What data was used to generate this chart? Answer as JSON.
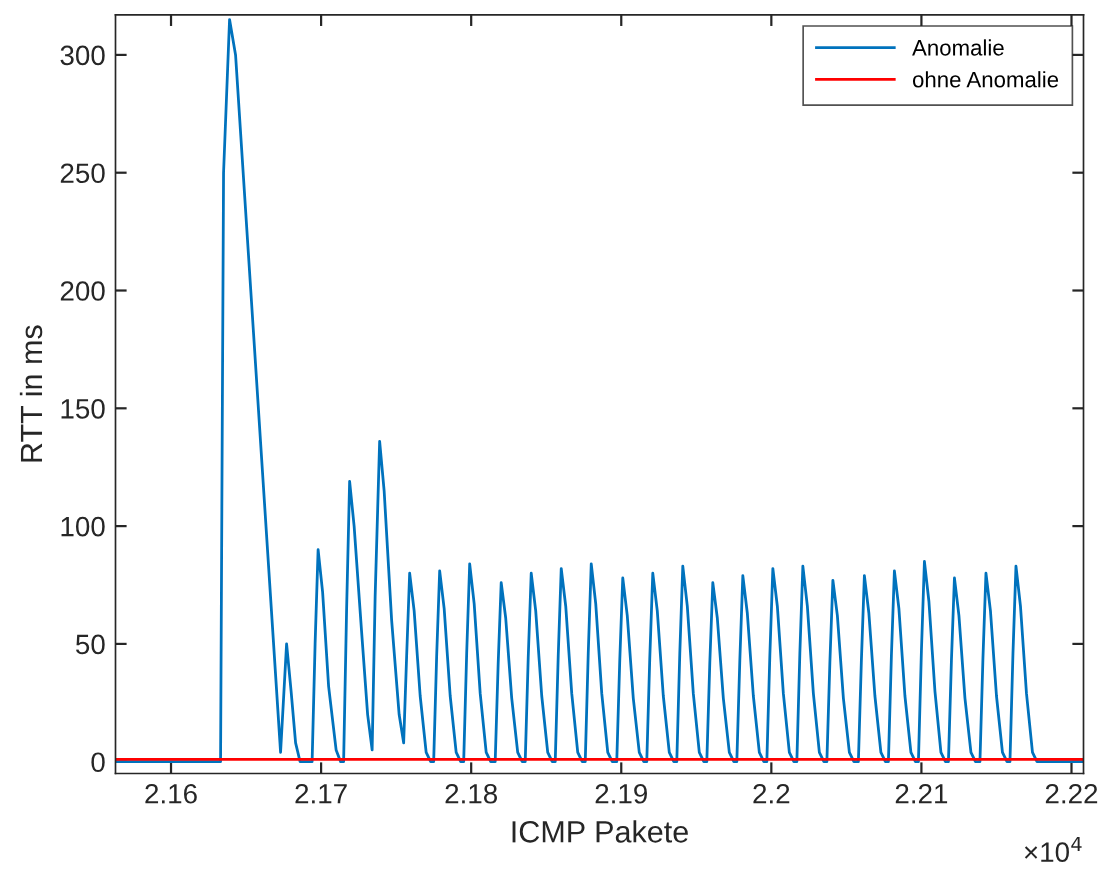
{
  "chart_data": {
    "type": "line",
    "xlabel": "ICMP Pakete",
    "ylabel": "RTT in ms",
    "xlim": [
      2.1563,
      2.2208
    ],
    "ylim": [
      -5,
      317
    ],
    "xticks": [
      2.16,
      2.17,
      2.18,
      2.19,
      2.2,
      2.21,
      2.22
    ],
    "yticks": [
      0,
      50,
      100,
      150,
      200,
      250,
      300
    ],
    "annotations": [
      "×10$^{4}$"
    ],
    "grid": false,
    "legend": "top right",
    "marker": "none",
    "line_style": "solid",
    "series": [
      {
        "name": "Anomalie",
        "color": "#0072bd",
        "x": [
          2.1563,
          2.1633,
          2.1635,
          2.1639,
          2.1643,
          2.1673,
          2.1677,
          2.168,
          2.1683,
          2.1686,
          2.1694,
          2.1696,
          2.1698,
          2.1701,
          2.1705,
          2.171,
          2.1713,
          2.1715,
          2.1717,
          2.1719,
          2.1722,
          2.1727,
          2.1731,
          2.1734,
          2.1736,
          2.1739,
          2.1742,
          2.1747,
          2.1752,
          2.1755,
          2.1757,
          2.1759,
          2.1762,
          2.1766,
          2.177,
          2.1773,
          2.1775,
          2.1777,
          2.1779,
          2.1782,
          2.1786,
          2.179,
          2.1793,
          2.1795,
          2.1797,
          2.1799,
          2.1802,
          2.1806,
          2.181,
          2.1813,
          2.1816,
          2.1818,
          2.182,
          2.1823,
          2.1827,
          2.1831,
          2.1834,
          2.1836,
          2.1838,
          2.184,
          2.1843,
          2.1847,
          2.1851,
          2.1854,
          2.1856,
          2.1858,
          2.186,
          2.1863,
          2.1867,
          2.1871,
          2.1874,
          2.1876,
          2.1878,
          2.188,
          2.1883,
          2.1887,
          2.1891,
          2.1894,
          2.1897,
          2.1899,
          2.1901,
          2.1904,
          2.1908,
          2.1912,
          2.1915,
          2.1917,
          2.1919,
          2.1921,
          2.1924,
          2.1928,
          2.1932,
          2.1935,
          2.1937,
          2.1939,
          2.1941,
          2.1944,
          2.1948,
          2.1952,
          2.1955,
          2.1957,
          2.1959,
          2.1961,
          2.1964,
          2.1968,
          2.1972,
          2.1975,
          2.1977,
          2.1979,
          2.1981,
          2.1984,
          2.1988,
          2.1992,
          2.1995,
          2.1997,
          2.1999,
          2.2001,
          2.2004,
          2.2008,
          2.2012,
          2.2015,
          2.2017,
          2.2019,
          2.2021,
          2.2024,
          2.2028,
          2.2032,
          2.2035,
          2.2037,
          2.2039,
          2.2041,
          2.2044,
          2.2048,
          2.2052,
          2.2055,
          2.2058,
          2.206,
          2.2062,
          2.2065,
          2.2069,
          2.2073,
          2.2076,
          2.2078,
          2.208,
          2.2082,
          2.2085,
          2.2089,
          2.2093,
          2.2096,
          2.2098,
          2.21,
          2.2102,
          2.2105,
          2.2109,
          2.2113,
          2.2116,
          2.2118,
          2.212,
          2.2122,
          2.2125,
          2.2129,
          2.2133,
          2.2136,
          2.2139,
          2.2141,
          2.2143,
          2.2146,
          2.215,
          2.2154,
          2.2157,
          2.2159,
          2.2161,
          2.2163,
          2.2166,
          2.217,
          2.2174,
          2.2177,
          2.2208
        ],
        "values": [
          0,
          0,
          250,
          315,
          300,
          4,
          50,
          30,
          8,
          0,
          0,
          50,
          90,
          72,
          32,
          5,
          0,
          0,
          65,
          119,
          100,
          55,
          20,
          5,
          70,
          136,
          115,
          60,
          20,
          8,
          45,
          80,
          64,
          28,
          4,
          0,
          0,
          45,
          81,
          65,
          28,
          4,
          0,
          0,
          46,
          84,
          67,
          29,
          4,
          0,
          0,
          42,
          76,
          61,
          27,
          4,
          0,
          0,
          44,
          80,
          64,
          28,
          4,
          0,
          0,
          45,
          82,
          66,
          29,
          4,
          0,
          0,
          46,
          84,
          67,
          29,
          4,
          0,
          0,
          43,
          78,
          62,
          27,
          4,
          0,
          0,
          44,
          80,
          64,
          28,
          4,
          0,
          0,
          46,
          83,
          66,
          29,
          4,
          0,
          0,
          42,
          76,
          61,
          27,
          4,
          0,
          0,
          43,
          79,
          63,
          28,
          4,
          0,
          0,
          45,
          82,
          66,
          29,
          4,
          0,
          0,
          46,
          83,
          66,
          29,
          4,
          0,
          0,
          42,
          77,
          62,
          27,
          4,
          0,
          0,
          43,
          79,
          63,
          28,
          4,
          0,
          0,
          45,
          81,
          65,
          28,
          4,
          0,
          0,
          47,
          85,
          68,
          30,
          4,
          0,
          0,
          43,
          78,
          62,
          27,
          4,
          0,
          0,
          44,
          80,
          64,
          28,
          4,
          0,
          0,
          46,
          83,
          66,
          29,
          4,
          0,
          0
        ]
      },
      {
        "name": "ohne Anomalie",
        "color": "#ff0000",
        "x": [
          2.1563,
          2.2208
        ],
        "values": [
          1,
          1
        ]
      }
    ]
  }
}
